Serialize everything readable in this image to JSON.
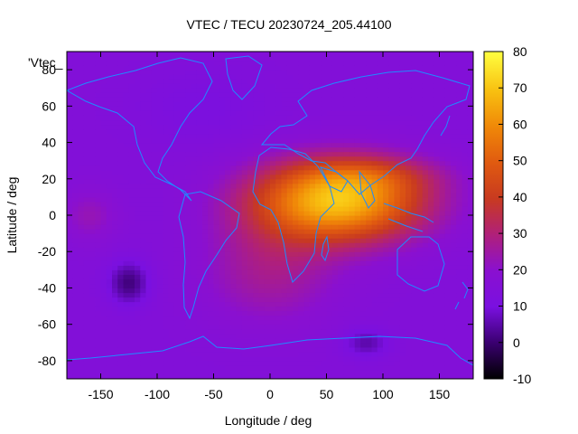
{
  "chart_data": {
    "type": "heatmap",
    "title": "VTEC / TECU 20230724_205.44100",
    "xlabel": "Longitude / deg",
    "ylabel": "Latitude / deg",
    "xlim": [
      -180,
      180
    ],
    "ylim": [
      -90,
      90
    ],
    "x_ticks": [
      -150,
      -100,
      -50,
      0,
      50,
      100,
      150
    ],
    "y_ticks": [
      -80,
      -60,
      -40,
      -20,
      0,
      20,
      40,
      60,
      80
    ],
    "colorbar": {
      "label": "VTEC / TECU",
      "range": [
        -10,
        80
      ],
      "ticks": [
        -10,
        0,
        10,
        20,
        30,
        40,
        50,
        60,
        70,
        80
      ]
    },
    "legend_label": "'Vtec_",
    "description_values": {
      "background_level": 15,
      "peak_level": 75,
      "peak_region_lon": [
        10,
        150
      ],
      "peak_region_lat": [
        -15,
        25
      ]
    },
    "x_tick_labels": [
      "-150",
      "-100",
      "-50",
      "0",
      "50",
      "100",
      "150"
    ],
    "y_tick_labels": [
      "-80",
      "-60",
      "-40",
      "-20",
      "0",
      "20",
      "40",
      "60",
      "80"
    ],
    "colorbar_tick_labels": [
      "-10",
      "0",
      "10",
      "20",
      "30",
      "40",
      "50",
      "60",
      "70",
      "80"
    ]
  }
}
